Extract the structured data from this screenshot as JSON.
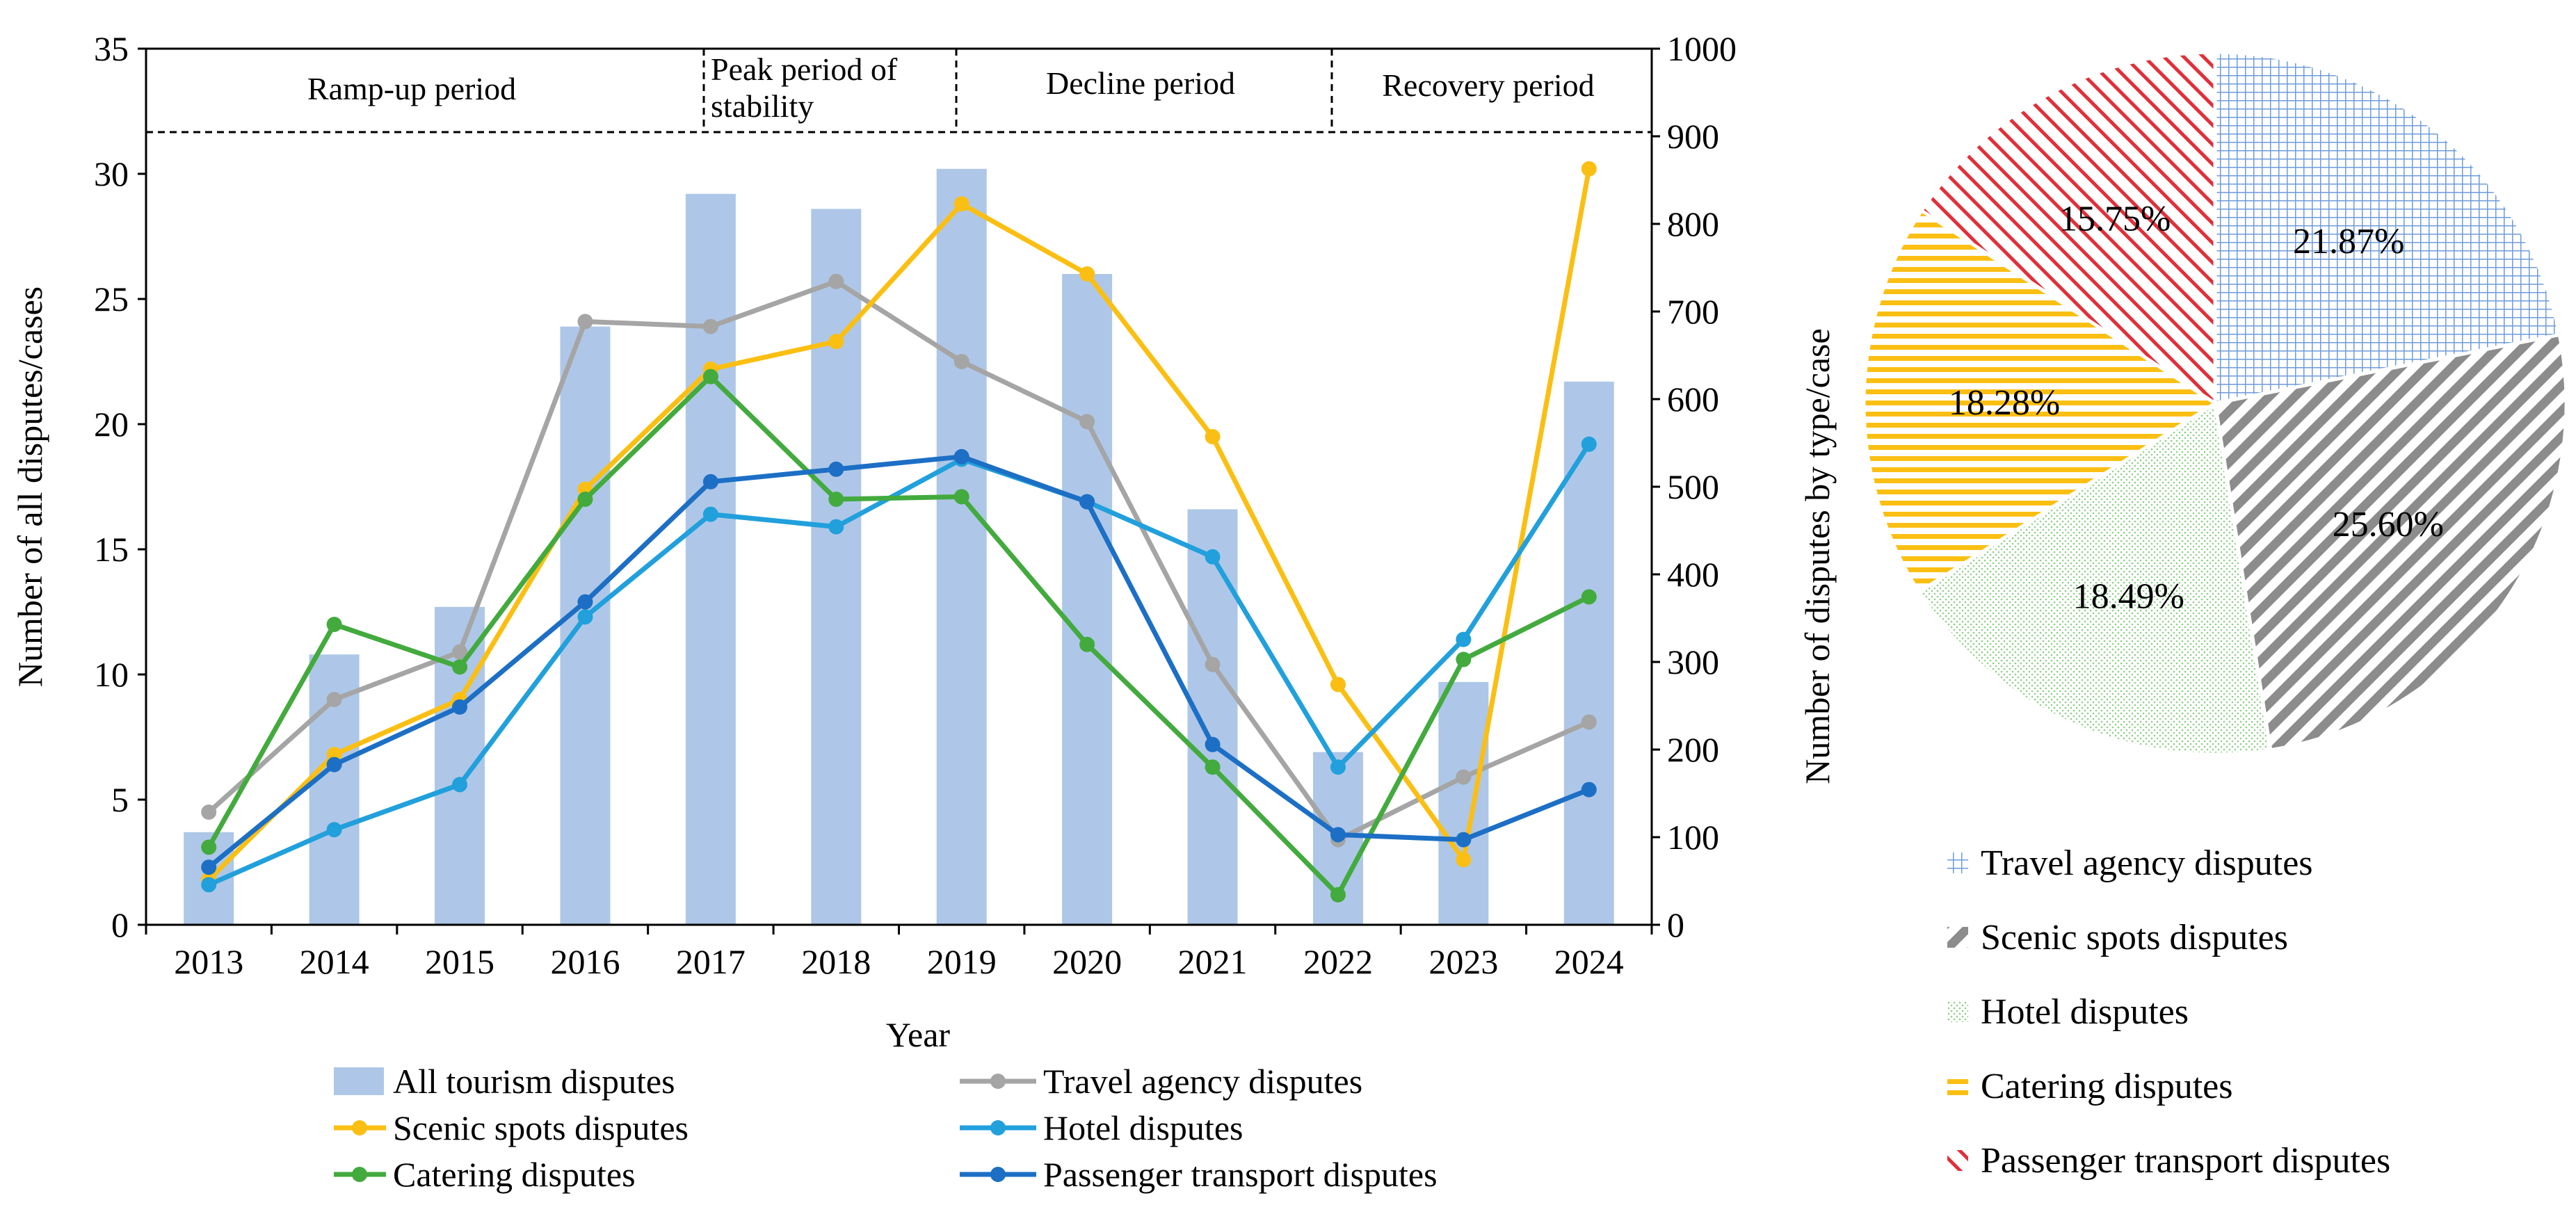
{
  "chart_data": [
    {
      "type": "bar+line",
      "title": "",
      "xlabel": "Year",
      "ylabel_left": "Number of all disputes/cases",
      "ylabel_right": "Number of disputes by type/case",
      "categories": [
        "2013",
        "2014",
        "2015",
        "2016",
        "2017",
        "2018",
        "2019",
        "2020",
        "2021",
        "2022",
        "2023",
        "2024"
      ],
      "y_left_range": [
        0,
        35
      ],
      "y_left_ticks": [
        0,
        5,
        10,
        15,
        20,
        25,
        30,
        35
      ],
      "y_right_range": [
        0,
        1000
      ],
      "y_right_ticks": [
        0,
        100,
        200,
        300,
        400,
        500,
        600,
        700,
        800,
        900,
        1000
      ],
      "bars": {
        "name": "All tourism disputes",
        "color": "#aec7e8",
        "axis": "left",
        "values": [
          3.7,
          10.8,
          12.7,
          23.9,
          29.2,
          28.6,
          30.2,
          26.0,
          16.6,
          6.9,
          9.7,
          21.7
        ]
      },
      "series": [
        {
          "name": "Travel agency disputes",
          "color": "#a5a5a5",
          "axis": "left",
          "values": [
            4.5,
            9.0,
            10.9,
            24.1,
            23.9,
            25.7,
            22.5,
            20.1,
            10.4,
            3.4,
            5.9,
            8.1
          ]
        },
        {
          "name": "Scenic spots disputes",
          "color": "#fbbf13",
          "axis": "left",
          "values": [
            1.8,
            6.8,
            9.0,
            17.4,
            22.2,
            23.3,
            28.8,
            26.0,
            19.5,
            9.6,
            2.6,
            30.2
          ]
        },
        {
          "name": "Hotel disputes",
          "color": "#21a0dc",
          "axis": "left",
          "values": [
            1.6,
            3.8,
            5.6,
            12.3,
            16.4,
            15.9,
            18.6,
            16.9,
            14.7,
            6.3,
            11.4,
            19.2
          ]
        },
        {
          "name": "Catering disputes",
          "color": "#43aa3e",
          "axis": "left",
          "values": [
            3.1,
            12.0,
            10.3,
            17.0,
            21.9,
            17.0,
            17.1,
            11.2,
            6.3,
            1.2,
            10.6,
            13.1
          ]
        },
        {
          "name": "Passenger transport disputes",
          "color": "#1c6fc4",
          "axis": "left",
          "values": [
            2.3,
            6.4,
            8.7,
            12.9,
            17.7,
            18.2,
            18.7,
            16.9,
            7.2,
            3.6,
            3.4,
            5.4
          ]
        }
      ],
      "periods": [
        "Ramp-up period",
        "Peak period of",
        "stability",
        "Decline period",
        "Recovery period"
      ],
      "legend_entries": [
        "All tourism disputes",
        "Travel agency disputes",
        "Scenic spots disputes",
        "Hotel disputes",
        "Catering disputes",
        "Passenger transport disputes"
      ]
    },
    {
      "type": "pie",
      "slices": [
        {
          "name": "Travel agency disputes",
          "value": 21.87,
          "label": "21.87%",
          "color": "#6d9bd8",
          "pattern": "grid"
        },
        {
          "name": "Scenic spots disputes",
          "value": 25.6,
          "label": "25.60%",
          "color": "#8c8c8c",
          "pattern": "diag-wide"
        },
        {
          "name": "Hotel disputes",
          "value": 18.49,
          "label": "18.49%",
          "color": "#8ccf84",
          "pattern": "dots"
        },
        {
          "name": "Catering disputes",
          "value": 18.28,
          "label": "18.28%",
          "color": "#fbbf13",
          "pattern": "hlines"
        },
        {
          "name": "Passenger transport disputes",
          "value": 15.75,
          "label": "15.75%",
          "color": "#e0303a",
          "pattern": "diag"
        }
      ]
    }
  ]
}
